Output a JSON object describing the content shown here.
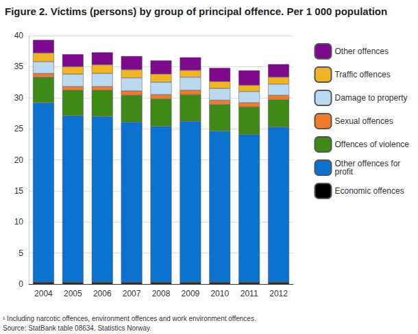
{
  "chart_data": {
    "type": "bar",
    "title": "Figure 2. Victims (persons) by group of principal offence. Per 1 000 population",
    "annotations": [
      "¹ Including narcotic offences, environment offences and work environment offences.",
      "Source: StatBank table 08634, Statistics Norway."
    ],
    "categories": [
      "2004",
      "2005",
      "2006",
      "2007",
      "2008",
      "2009",
      "2010",
      "2011",
      "2012"
    ],
    "stacked": true,
    "legend": "right",
    "grid": true,
    "ylim": [
      0,
      40
    ],
    "yticks": [
      0,
      5,
      10,
      15,
      20,
      25,
      30,
      35,
      40
    ],
    "series": [
      {
        "name": "Economic offences",
        "color": "#000000",
        "values": [
          0.3,
          0.3,
          0.3,
          0.3,
          0.3,
          0.3,
          0.3,
          0.3,
          0.3
        ]
      },
      {
        "name": "Other offences for profit",
        "color": "#0b72d0",
        "values": [
          28.9,
          26.8,
          26.7,
          25.8,
          25.1,
          25.9,
          24.3,
          23.8,
          25.0
        ]
      },
      {
        "name": "Offences of violence",
        "color": "#3f8a17",
        "values": [
          4.1,
          4.1,
          4.2,
          4.3,
          4.4,
          4.3,
          4.3,
          4.4,
          4.4
        ]
      },
      {
        "name": "Sexual offences",
        "color": "#f27a2a",
        "values": [
          0.6,
          0.6,
          0.6,
          0.7,
          0.7,
          0.7,
          0.7,
          0.7,
          0.7
        ]
      },
      {
        "name": "Damage to property",
        "color": "#bcd9f2",
        "values": [
          1.9,
          2.0,
          2.1,
          2.1,
          2.0,
          2.1,
          1.9,
          1.8,
          1.8
        ]
      },
      {
        "name": "Traffic offences",
        "color": "#f0b424",
        "values": [
          1.4,
          1.2,
          1.4,
          1.3,
          1.3,
          1.1,
          1.1,
          1.0,
          1.1
        ]
      },
      {
        "name": "Other offences",
        "color": "#7d0a8c",
        "values": [
          2.1,
          2.0,
          2.0,
          2.2,
          2.2,
          2.1,
          2.2,
          2.4,
          2.1
        ]
      }
    ]
  }
}
